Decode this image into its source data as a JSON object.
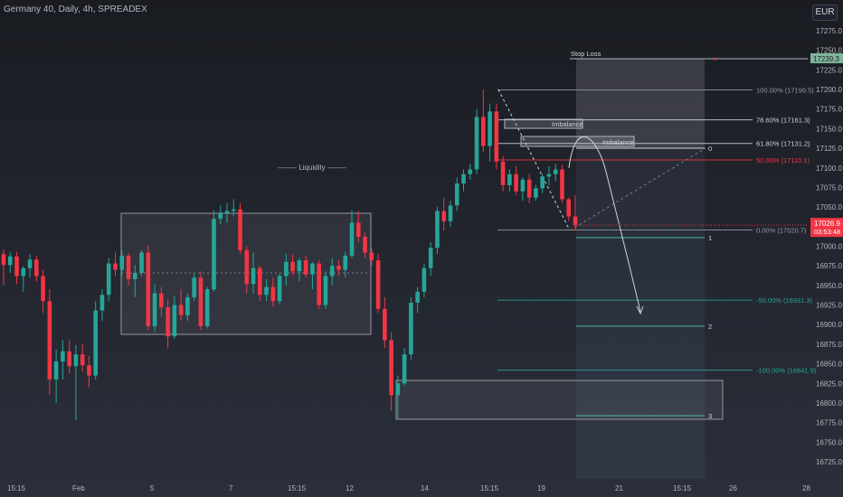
{
  "header": {
    "title": "Germany 40, Daily, 4h, SPREADEX",
    "currency": "EUR"
  },
  "chart_data": {
    "type": "candlestick",
    "instrument": "Germany 40",
    "interval": "4h",
    "source": "SPREADEX",
    "currency": "EUR",
    "y_axis": {
      "ticks": [
        17275,
        17250,
        17225,
        17200,
        17175,
        17150,
        17125,
        17100,
        17075,
        17050,
        17025,
        17000,
        16975,
        16950,
        16925,
        16900,
        16875,
        16850,
        16825,
        16800,
        16775,
        16750,
        16725
      ],
      "tick_labels": [
        "17275.0",
        "17250.0",
        "17225.0",
        "17200.0",
        "17175.0",
        "17150.0",
        "17125.0",
        "17100.0",
        "17075.0",
        "17050.0",
        "17025.0",
        "17000.0",
        "16975.0",
        "16950.0",
        "16925.0",
        "16900.0",
        "16875.0",
        "16850.0",
        "16825.0",
        "16800.0",
        "16775.0",
        "16750.0",
        "16725.0"
      ],
      "ylim": [
        16710,
        17290
      ]
    },
    "x_axis": {
      "tick_labels": [
        "15:15",
        "Feb",
        "5",
        "7",
        "15:15",
        "12",
        "14",
        "15:15",
        "19",
        "21",
        "15:15",
        "26",
        "28"
      ]
    },
    "last_price": {
      "value": "17026.9",
      "countdown": "03:53:48",
      "color": "#f23645"
    },
    "stop_loss": {
      "label": "Stop Loss",
      "value": "17239.3"
    },
    "fib_levels": [
      {
        "label": "100.00% (17199.5)",
        "value": 17199.5,
        "color": "#9598a1"
      },
      {
        "label": "78.60% (17161.3)",
        "value": 17161.3,
        "color": "#d1d4dc"
      },
      {
        "label": "61.80% (17131.2)",
        "value": 17131.2,
        "color": "#d1d4dc"
      },
      {
        "label": "50.00% (17110.1)",
        "value": 17110.1,
        "color": "#f23645"
      },
      {
        "label": "0.00% (17020.7)",
        "value": 17020.7,
        "color": "#9598a1"
      },
      {
        "label": "-50.00% (16931.3)",
        "value": 16931.3,
        "color": "#26a69a"
      },
      {
        "label": "-100.00% (16841.9)",
        "value": 16841.9,
        "color": "#26a69a"
      }
    ],
    "annotations": [
      {
        "label": "-------- Liquidity --------"
      },
      {
        "label": "Imbalance"
      },
      {
        "label": "Imbalance"
      },
      {
        "label": "0"
      },
      {
        "label": "1"
      },
      {
        "label": "2"
      },
      {
        "label": "3"
      }
    ],
    "candles": [
      [
        16990,
        16996,
        16950,
        16976
      ],
      [
        16976,
        16992,
        16966,
        16987
      ],
      [
        16987,
        16993,
        16952,
        16962
      ],
      [
        16962,
        16975,
        16942,
        16972
      ],
      [
        16972,
        16990,
        16960,
        16983
      ],
      [
        16983,
        16988,
        16955,
        16962
      ],
      [
        16962,
        16970,
        16915,
        16930
      ],
      [
        16930,
        16945,
        16810,
        16830
      ],
      [
        16830,
        16868,
        16800,
        16853
      ],
      [
        16853,
        16880,
        16830,
        16866
      ],
      [
        16866,
        16880,
        16838,
        16847
      ],
      [
        16847,
        16874,
        16778,
        16862
      ],
      [
        16862,
        16875,
        16840,
        16848
      ],
      [
        16848,
        16860,
        16820,
        16835
      ],
      [
        16835,
        16930,
        16830,
        16918
      ],
      [
        16918,
        16945,
        16905,
        16938
      ],
      [
        16938,
        16985,
        16930,
        16978
      ],
      [
        16978,
        16992,
        16962,
        16970
      ],
      [
        16970,
        16995,
        16962,
        16988
      ],
      [
        16988,
        16992,
        16950,
        16958
      ],
      [
        16958,
        16976,
        16935,
        16966
      ],
      [
        16966,
        16995,
        16962,
        16992
      ],
      [
        16992,
        17001,
        16893,
        16898
      ],
      [
        16898,
        16952,
        16890,
        16940
      ],
      [
        16940,
        16948,
        16910,
        16922
      ],
      [
        16922,
        16932,
        16870,
        16885
      ],
      [
        16885,
        16936,
        16882,
        16925
      ],
      [
        16925,
        16945,
        16905,
        16912
      ],
      [
        16912,
        16940,
        16905,
        16935
      ],
      [
        16935,
        16966,
        16930,
        16960
      ],
      [
        16960,
        16968,
        16893,
        16898
      ],
      [
        16898,
        16948,
        16895,
        16945
      ],
      [
        16945,
        17046,
        16942,
        17035
      ],
      [
        17035,
        17052,
        17028,
        17042
      ],
      [
        17042,
        17055,
        17030,
        17045
      ],
      [
        17045,
        17060,
        17038,
        17047
      ],
      [
        17047,
        17055,
        16990,
        16995
      ],
      [
        16995,
        17000,
        16940,
        16952
      ],
      [
        16952,
        16992,
        16940,
        16972
      ],
      [
        16972,
        16975,
        16930,
        16938
      ],
      [
        16938,
        16958,
        16930,
        16948
      ],
      [
        16948,
        16960,
        16923,
        16930
      ],
      [
        16930,
        16965,
        16926,
        16962
      ],
      [
        16962,
        16990,
        16950,
        16980
      ],
      [
        16980,
        16990,
        16963,
        16968
      ],
      [
        16968,
        16985,
        16955,
        16982
      ],
      [
        16982,
        16988,
        16960,
        16964
      ],
      [
        16964,
        16980,
        16945,
        16978
      ],
      [
        16978,
        16982,
        16920,
        16925
      ],
      [
        16925,
        16968,
        16920,
        16962
      ],
      [
        16962,
        16985,
        16950,
        16975
      ],
      [
        16975,
        16982,
        16962,
        16970
      ],
      [
        16970,
        16993,
        16960,
        16988
      ],
      [
        16988,
        17046,
        16985,
        17030
      ],
      [
        17030,
        17045,
        17005,
        17012
      ],
      [
        17012,
        17018,
        16985,
        16992
      ],
      [
        16992,
        16998,
        16975,
        16982
      ],
      [
        16982,
        16990,
        16915,
        16920
      ],
      [
        16920,
        16935,
        16870,
        16880
      ],
      [
        16880,
        16890,
        16790,
        16810
      ],
      [
        16810,
        16835,
        16780,
        16825
      ],
      [
        16825,
        16870,
        16822,
        16862
      ],
      [
        16862,
        16935,
        16855,
        16928
      ],
      [
        16928,
        16948,
        16915,
        16942
      ],
      [
        16942,
        16978,
        16935,
        16972
      ],
      [
        16972,
        17005,
        16962,
        16998
      ],
      [
        16998,
        17050,
        16990,
        17045
      ],
      [
        17045,
        17062,
        17020,
        17032
      ],
      [
        17032,
        17058,
        17025,
        17052
      ],
      [
        17052,
        17088,
        17045,
        17080
      ],
      [
        17080,
        17098,
        17070,
        17092
      ],
      [
        17092,
        17105,
        17085,
        17098
      ],
      [
        17098,
        17175,
        17092,
        17165
      ],
      [
        17165,
        17200,
        17120,
        17128
      ],
      [
        17128,
        17182,
        17108,
        17172
      ],
      [
        17172,
        17182,
        17098,
        17108
      ],
      [
        17108,
        17115,
        17070,
        17078
      ],
      [
        17078,
        17098,
        17070,
        17092
      ],
      [
        17092,
        17102,
        17065,
        17070
      ],
      [
        17070,
        17088,
        17058,
        17085
      ],
      [
        17085,
        17092,
        17055,
        17062
      ],
      [
        17062,
        17078,
        17058,
        17074
      ],
      [
        17074,
        17092,
        17068,
        17089
      ],
      [
        17089,
        17102,
        17078,
        17092
      ],
      [
        17092,
        17105,
        17083,
        17098
      ],
      [
        17098,
        17104,
        17055,
        17060
      ],
      [
        17060,
        17062,
        17032,
        17038
      ],
      [
        17038,
        17065,
        17020,
        17026.9
      ]
    ]
  }
}
